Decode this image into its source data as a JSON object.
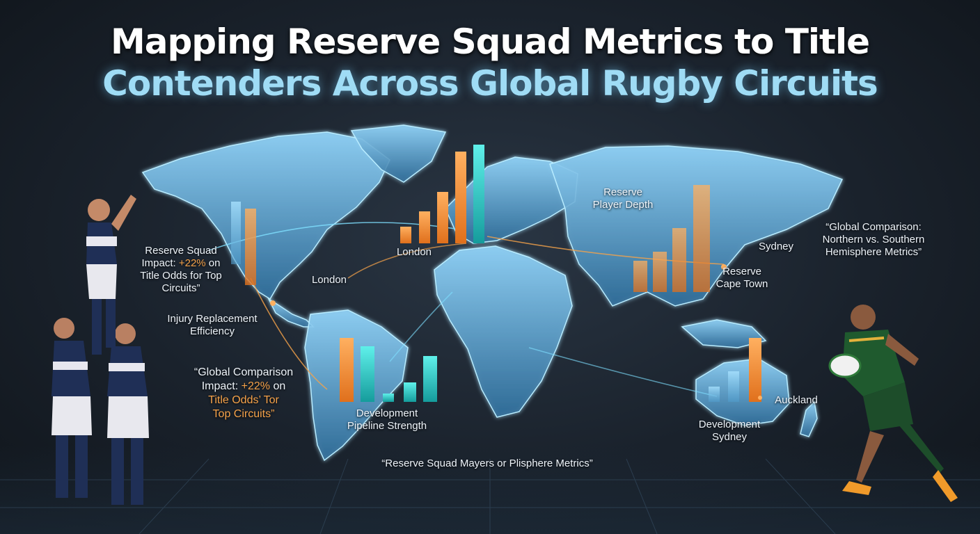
{
  "title": {
    "line1": "Mapping Reserve Squad Metrics to Title",
    "line2": "Contenders Across Global Rugby Circuits"
  },
  "labels": {
    "reserve_player_depth": "Reserve\nPlayer Depth",
    "reserve_squad_impact_prefix": "Reserve Squad\nImpact: ",
    "reserve_squad_impact_highlight": "+22%",
    "reserve_squad_impact_suffix": " on\nTitle Odds for Top\nCircuits”",
    "injury_replacement": "Injury Replacement\nEfficiency",
    "global_comparison_left_prefix": "“Global Comparison\nImpact: ",
    "global_comparison_left_highlight": "+22%",
    "global_comparison_left_suffix": " on",
    "global_comparison_left_orange": "Title Odds’ Tor\nTop Circuits”",
    "global_comparison_right": "“Global Comparison:\nNorthern vs. Southern\nHemisphere Metrics”",
    "london_1": "London",
    "london_2": "London",
    "sydney": "Sydney",
    "reserve_cape_town": "Reserve\nCape Town",
    "auckland": "Auckland",
    "development_pipeline": "Development\nPipeline Strength",
    "development_sydney": "Development\nSydney",
    "bottom_caption": "“Reserve Squad Mayers or Plisphere Metrics”"
  },
  "colors": {
    "map_fill": "#4d8fbf",
    "map_glow": "#8fd8ff",
    "bar_orange": "#f28a2e",
    "bar_cyan": "#2fd6d2",
    "bar_blue": "#7fc6f0",
    "route_orange": "#f5a24a",
    "route_cyan": "#7fe0ff"
  },
  "icons": {
    "left_players": "rugby-lineout-players",
    "right_player": "rugby-runner-with-ball"
  }
}
